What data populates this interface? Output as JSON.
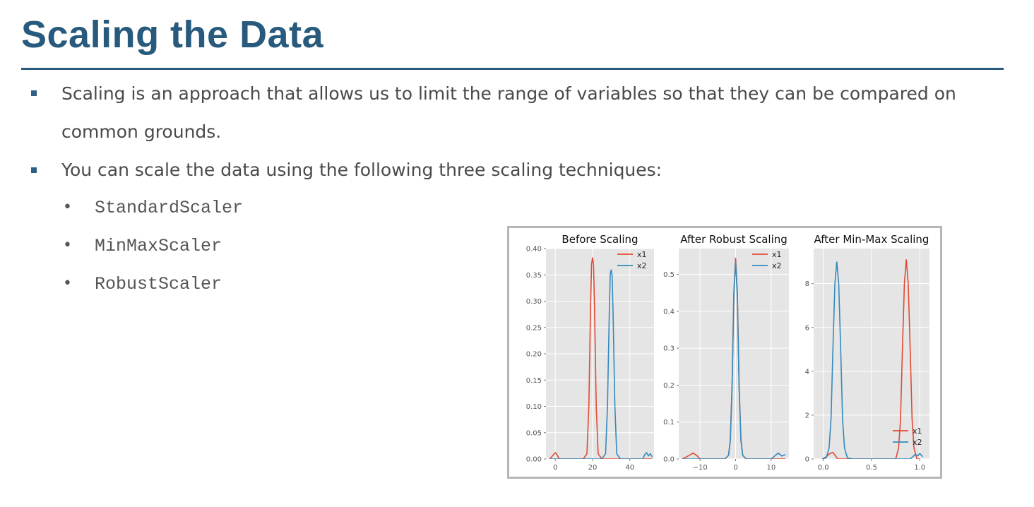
{
  "slide": {
    "title": "Scaling the Data",
    "bullets": [
      {
        "text_line1": "Scaling is an approach that allows us to limit the range of variables so that they can be compared on",
        "text_line2": "common grounds."
      },
      {
        "text_line1": "You can scale the data using the following three scaling techniques:"
      }
    ],
    "sub_items": [
      "StandardScaler",
      "MinMaxScaler",
      "RobustScaler"
    ]
  },
  "colors": {
    "accent": "#275a7c",
    "x1": "#e24a33",
    "x2": "#348abd",
    "panel_bg": "#e5e5e5"
  },
  "chart_data": [
    {
      "type": "line",
      "title": "Before Scaling",
      "xlim": [
        -5,
        53
      ],
      "ylim": [
        0,
        0.4
      ],
      "xticks": [
        0,
        20,
        40
      ],
      "xtick_labels": [
        "0",
        "20",
        "40"
      ],
      "yticks": [
        0,
        0.05,
        0.1,
        0.15,
        0.2,
        0.25,
        0.3,
        0.35,
        0.4
      ],
      "ytick_labels": [
        "0.00",
        "0.05",
        "0.10",
        "0.15",
        "0.20",
        "0.25",
        "0.30",
        "0.35",
        "0.40"
      ],
      "legend": "top-right",
      "grid": true,
      "series": [
        {
          "name": "x1",
          "color": "#e24a33",
          "x": [
            -3,
            -1,
            0,
            1,
            2,
            5,
            10,
            15,
            17,
            18,
            19,
            19.5,
            20,
            20.5,
            21,
            22,
            23,
            25,
            30,
            40,
            50,
            52
          ],
          "y": [
            0,
            0.008,
            0.012,
            0.008,
            0,
            0,
            0,
            0,
            0.01,
            0.1,
            0.3,
            0.37,
            0.383,
            0.37,
            0.3,
            0.1,
            0.01,
            0,
            0,
            0,
            0,
            0
          ]
        },
        {
          "name": "x2",
          "color": "#348abd",
          "x": [
            -3,
            0,
            10,
            20,
            25,
            27,
            28,
            29,
            29.5,
            30,
            30.5,
            31,
            32,
            33,
            35,
            40,
            45,
            47,
            48,
            49,
            50,
            51,
            52
          ],
          "y": [
            0,
            0,
            0,
            0,
            0,
            0.01,
            0.1,
            0.28,
            0.35,
            0.36,
            0.35,
            0.28,
            0.1,
            0.01,
            0,
            0,
            0,
            0,
            0.008,
            0.012,
            0.006,
            0.01,
            0.004
          ]
        }
      ]
    },
    {
      "type": "line",
      "title": "After Robust Scaling",
      "xlim": [
        -16,
        15
      ],
      "ylim": [
        0,
        0.57
      ],
      "xticks": [
        -10,
        0,
        10
      ],
      "xtick_labels": [
        "−10",
        "0",
        "10"
      ],
      "yticks": [
        0,
        0.1,
        0.2,
        0.3,
        0.4,
        0.5
      ],
      "ytick_labels": [
        "0.0",
        "0.1",
        "0.2",
        "0.3",
        "0.4",
        "0.5"
      ],
      "legend": "top-right",
      "grid": true,
      "series": [
        {
          "name": "x1",
          "color": "#e24a33",
          "x": [
            -15,
            -13,
            -12,
            -11,
            -10,
            -6,
            -3,
            -2,
            -1.5,
            -1,
            -0.5,
            0,
            0.5,
            1,
            1.5,
            2,
            3,
            6,
            12,
            14
          ],
          "y": [
            0,
            0.01,
            0.016,
            0.01,
            0,
            0,
            0,
            0.01,
            0.05,
            0.2,
            0.45,
            0.545,
            0.45,
            0.2,
            0.05,
            0.01,
            0,
            0,
            0,
            0
          ]
        },
        {
          "name": "x2",
          "color": "#348abd",
          "x": [
            -15,
            -6,
            -3,
            -2,
            -1.5,
            -1,
            -0.5,
            0,
            0.5,
            1,
            1.5,
            2,
            3,
            6,
            10,
            11,
            12,
            13,
            14
          ],
          "y": [
            0,
            0,
            0,
            0.01,
            0.05,
            0.19,
            0.44,
            0.535,
            0.44,
            0.19,
            0.05,
            0.01,
            0,
            0,
            0,
            0.008,
            0.016,
            0.008,
            0.012
          ]
        }
      ]
    },
    {
      "type": "line",
      "title": "After Min-Max Scaling",
      "xlim": [
        -0.1,
        1.1
      ],
      "ylim": [
        0,
        9.6
      ],
      "xticks": [
        0.0,
        0.5,
        1.0
      ],
      "xtick_labels": [
        "0.0",
        "0.5",
        "1.0"
      ],
      "yticks": [
        0,
        2,
        4,
        6,
        8
      ],
      "ytick_labels": [
        "0",
        "2",
        "4",
        "6",
        "8"
      ],
      "legend": "bottom-right",
      "grid": true,
      "series": [
        {
          "name": "x1",
          "color": "#e24a33",
          "x": [
            -0.01,
            0.03,
            0.07,
            0.1,
            0.15,
            0.3,
            0.6,
            0.75,
            0.78,
            0.8,
            0.82,
            0.84,
            0.86,
            0.88,
            0.9,
            0.92,
            0.94,
            0.97,
            1.0
          ],
          "y": [
            0,
            0.1,
            0.25,
            0.3,
            0,
            0,
            0,
            0,
            0.5,
            1.8,
            5.0,
            8.0,
            9.1,
            8.0,
            5.0,
            1.8,
            0.5,
            0,
            0
          ]
        },
        {
          "name": "x2",
          "color": "#348abd",
          "x": [
            -0.01,
            0.03,
            0.06,
            0.08,
            0.1,
            0.12,
            0.14,
            0.16,
            0.18,
            0.2,
            0.22,
            0.25,
            0.3,
            0.6,
            0.9,
            0.95,
            0.98,
            1.0,
            1.03
          ],
          "y": [
            0,
            0.05,
            0.5,
            1.8,
            5.0,
            8.0,
            9.0,
            8.0,
            5.0,
            1.8,
            0.5,
            0.05,
            0,
            0,
            0,
            0.2,
            0.15,
            0.25,
            0.1
          ]
        }
      ]
    }
  ]
}
